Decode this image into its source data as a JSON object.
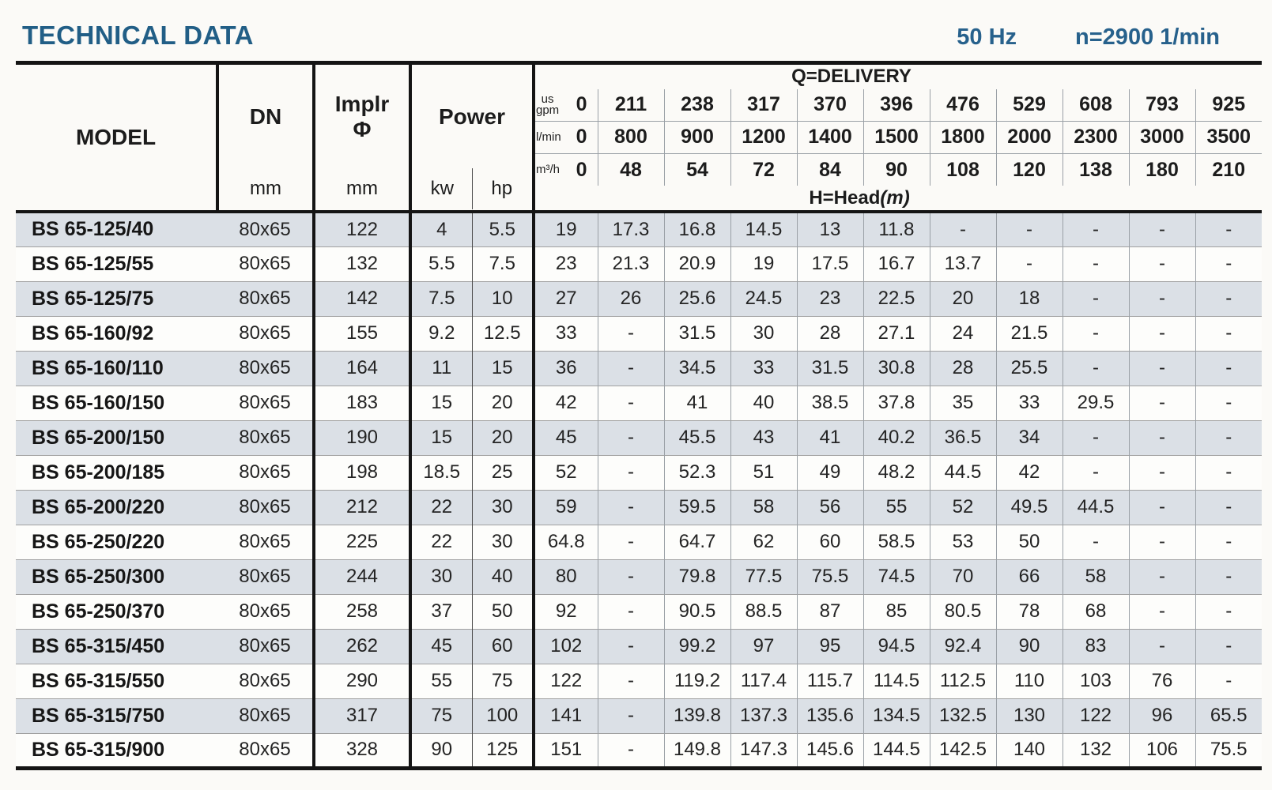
{
  "page": {
    "title": "TECHNICAL DATA",
    "frequency": "50 Hz",
    "speed": "n=2900 1/min"
  },
  "colors": {
    "title_blue": "#215e86",
    "specs_blue": "#27618c",
    "row_shade": "#dbe0e6"
  },
  "table": {
    "left_header": {
      "model_label": "MODEL",
      "dn_label": "DN",
      "dn_unit": "mm",
      "impeller_label": "Implr",
      "impeller_symbol": "Φ",
      "impeller_unit": "mm",
      "power_label": "Power",
      "power_unit_kw": "kw",
      "power_unit_hp": "hp"
    },
    "delivery": {
      "title": "Q=DELIVERY",
      "head_label": "H=Head",
      "head_unit": "(m)",
      "unit_rows": [
        {
          "unit_lines": [
            "us",
            "gpm"
          ],
          "values": [
            "0",
            "211",
            "238",
            "317",
            "370",
            "396",
            "476",
            "529",
            "608",
            "793",
            "925"
          ]
        },
        {
          "unit_lines": [
            "l/min"
          ],
          "values": [
            "0",
            "800",
            "900",
            "1200",
            "1400",
            "1500",
            "1800",
            "2000",
            "2300",
            "3000",
            "3500"
          ]
        },
        {
          "unit_lines": [
            "m³/h"
          ],
          "values": [
            "0",
            "48",
            "54",
            "72",
            "84",
            "90",
            "108",
            "120",
            "138",
            "180",
            "210"
          ]
        }
      ]
    },
    "rows": [
      {
        "model": "BS 65-125/40",
        "dn": "80x65",
        "impeller": "122",
        "kw": "4",
        "hp": "5.5",
        "head": [
          "19",
          "17.3",
          "16.8",
          "14.5",
          "13",
          "11.8",
          "-",
          "-",
          "-",
          "-",
          "-"
        ]
      },
      {
        "model": "BS 65-125/55",
        "dn": "80x65",
        "impeller": "132",
        "kw": "5.5",
        "hp": "7.5",
        "head": [
          "23",
          "21.3",
          "20.9",
          "19",
          "17.5",
          "16.7",
          "13.7",
          "-",
          "-",
          "-",
          "-"
        ]
      },
      {
        "model": "BS 65-125/75",
        "dn": "80x65",
        "impeller": "142",
        "kw": "7.5",
        "hp": "10",
        "head": [
          "27",
          "26",
          "25.6",
          "24.5",
          "23",
          "22.5",
          "20",
          "18",
          "-",
          "-",
          "-"
        ]
      },
      {
        "model": "BS 65-160/92",
        "dn": "80x65",
        "impeller": "155",
        "kw": "9.2",
        "hp": "12.5",
        "head": [
          "33",
          "-",
          "31.5",
          "30",
          "28",
          "27.1",
          "24",
          "21.5",
          "-",
          "-",
          "-"
        ]
      },
      {
        "model": "BS 65-160/110",
        "dn": "80x65",
        "impeller": "164",
        "kw": "11",
        "hp": "15",
        "head": [
          "36",
          "-",
          "34.5",
          "33",
          "31.5",
          "30.8",
          "28",
          "25.5",
          "-",
          "-",
          "-"
        ]
      },
      {
        "model": "BS 65-160/150",
        "dn": "80x65",
        "impeller": "183",
        "kw": "15",
        "hp": "20",
        "head": [
          "42",
          "-",
          "41",
          "40",
          "38.5",
          "37.8",
          "35",
          "33",
          "29.5",
          "-",
          "-"
        ]
      },
      {
        "model": "BS 65-200/150",
        "dn": "80x65",
        "impeller": "190",
        "kw": "15",
        "hp": "20",
        "head": [
          "45",
          "-",
          "45.5",
          "43",
          "41",
          "40.2",
          "36.5",
          "34",
          "-",
          "-",
          "-"
        ]
      },
      {
        "model": "BS 65-200/185",
        "dn": "80x65",
        "impeller": "198",
        "kw": "18.5",
        "hp": "25",
        "head": [
          "52",
          "-",
          "52.3",
          "51",
          "49",
          "48.2",
          "44.5",
          "42",
          "-",
          "-",
          "-"
        ]
      },
      {
        "model": "BS 65-200/220",
        "dn": "80x65",
        "impeller": "212",
        "kw": "22",
        "hp": "30",
        "head": [
          "59",
          "-",
          "59.5",
          "58",
          "56",
          "55",
          "52",
          "49.5",
          "44.5",
          "-",
          "-"
        ]
      },
      {
        "model": "BS 65-250/220",
        "dn": "80x65",
        "impeller": "225",
        "kw": "22",
        "hp": "30",
        "head": [
          "64.8",
          "-",
          "64.7",
          "62",
          "60",
          "58.5",
          "53",
          "50",
          "-",
          "-",
          "-"
        ]
      },
      {
        "model": "BS 65-250/300",
        "dn": "80x65",
        "impeller": "244",
        "kw": "30",
        "hp": "40",
        "head": [
          "80",
          "-",
          "79.8",
          "77.5",
          "75.5",
          "74.5",
          "70",
          "66",
          "58",
          "-",
          "-"
        ]
      },
      {
        "model": "BS 65-250/370",
        "dn": "80x65",
        "impeller": "258",
        "kw": "37",
        "hp": "50",
        "head": [
          "92",
          "-",
          "90.5",
          "88.5",
          "87",
          "85",
          "80.5",
          "78",
          "68",
          "-",
          "-"
        ]
      },
      {
        "model": "BS 65-315/450",
        "dn": "80x65",
        "impeller": "262",
        "kw": "45",
        "hp": "60",
        "head": [
          "102",
          "-",
          "99.2",
          "97",
          "95",
          "94.5",
          "92.4",
          "90",
          "83",
          "-",
          "-"
        ]
      },
      {
        "model": "BS 65-315/550",
        "dn": "80x65",
        "impeller": "290",
        "kw": "55",
        "hp": "75",
        "head": [
          "122",
          "-",
          "119.2",
          "117.4",
          "115.7",
          "114.5",
          "112.5",
          "110",
          "103",
          "76",
          "-"
        ]
      },
      {
        "model": "BS 65-315/750",
        "dn": "80x65",
        "impeller": "317",
        "kw": "75",
        "hp": "100",
        "head": [
          "141",
          "-",
          "139.8",
          "137.3",
          "135.6",
          "134.5",
          "132.5",
          "130",
          "122",
          "96",
          "65.5"
        ]
      },
      {
        "model": "BS 65-315/900",
        "dn": "80x65",
        "impeller": "328",
        "kw": "90",
        "hp": "125",
        "head": [
          "151",
          "-",
          "149.8",
          "147.3",
          "145.6",
          "144.5",
          "142.5",
          "140",
          "132",
          "106",
          "75.5"
        ]
      }
    ]
  }
}
